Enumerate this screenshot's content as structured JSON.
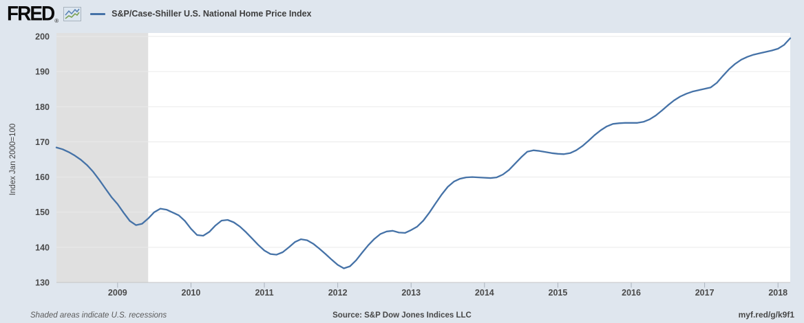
{
  "header": {
    "logo_text": "FRED",
    "logo_registered": "®",
    "series_label": "S&P/Case-Shiller U.S. National Home Price Index"
  },
  "chart_data": {
    "type": "line",
    "title": "S&P/Case-Shiller U.S. National Home Price Index",
    "xlabel": "",
    "ylabel": "Index Jan 2000=100",
    "x_start": "2008-03",
    "x_end": "2018-03",
    "frequency": "monthly",
    "x_tick_years": [
      2009,
      2010,
      2011,
      2012,
      2013,
      2014,
      2015,
      2016,
      2017,
      2018
    ],
    "y_ticks": [
      130,
      140,
      150,
      160,
      170,
      180,
      190,
      200
    ],
    "ylim": [
      130,
      201
    ],
    "grid": "horizontal",
    "legend_position": "top-left",
    "colors": {
      "line": "#4572a7",
      "background": "#dfe6ee",
      "plot_background": "#ffffff",
      "recession_band": "#e0e0e0",
      "gridline": "#eaeaea",
      "axis_line": "#c4c4c4",
      "tick_text": "#4a4a4a"
    },
    "recession_bands": [
      {
        "start": "2008-03",
        "end": "2009-06"
      }
    ],
    "series": [
      {
        "name": "S&P/Case-Shiller U.S. National Home Price Index",
        "color": "#4572a7",
        "start": "2008-03",
        "values": [
          168.4,
          167.9,
          167.1,
          166.1,
          164.9,
          163.4,
          161.5,
          159.2,
          156.7,
          154.3,
          152.3,
          149.8,
          147.5,
          146.3,
          146.7,
          148.2,
          150.0,
          151.0,
          150.7,
          149.9,
          149.1,
          147.5,
          145.3,
          143.5,
          143.3,
          144.4,
          146.2,
          147.6,
          147.8,
          147.1,
          145.9,
          144.3,
          142.5,
          140.7,
          139.1,
          138.1,
          137.9,
          138.6,
          140.0,
          141.5,
          142.3,
          142.0,
          141.0,
          139.6,
          138.1,
          136.5,
          135.0,
          134.0,
          134.6,
          136.3,
          138.5,
          140.6,
          142.4,
          143.8,
          144.5,
          144.7,
          144.2,
          144.1,
          144.9,
          145.9,
          147.6,
          149.9,
          152.5,
          155.0,
          157.2,
          158.7,
          159.5,
          159.9,
          160.0,
          159.9,
          159.8,
          159.7,
          159.9,
          160.7,
          162.0,
          163.8,
          165.6,
          167.2,
          167.6,
          167.4,
          167.1,
          166.8,
          166.6,
          166.5,
          166.8,
          167.6,
          168.8,
          170.3,
          171.9,
          173.3,
          174.4,
          175.1,
          175.3,
          175.4,
          175.4,
          175.4,
          175.7,
          176.4,
          177.5,
          178.9,
          180.4,
          181.8,
          182.9,
          183.7,
          184.3,
          184.7,
          185.1,
          185.5,
          186.8,
          188.8,
          190.7,
          192.2,
          193.4,
          194.2,
          194.8,
          195.2,
          195.6,
          196.0,
          196.5,
          197.6,
          199.5
        ]
      }
    ]
  },
  "footer": {
    "note": "Shaded areas indicate U.S. recessions",
    "source": "Source: S&P Dow Jones Indices LLC",
    "link": "myf.red/g/k9f1"
  }
}
